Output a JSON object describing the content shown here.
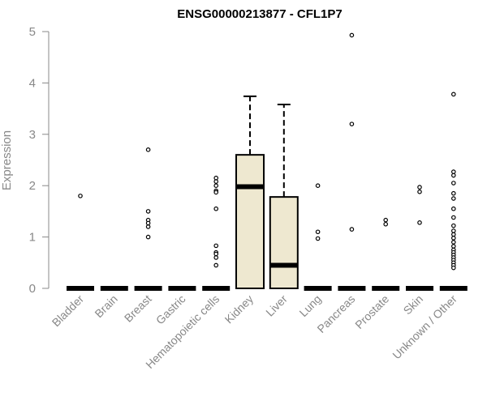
{
  "chart_data": {
    "type": "box",
    "title": "ENSG00000213877 - CFL1P7",
    "ylabel": "Expression",
    "xlabel": "",
    "ylim": [
      0,
      5
    ],
    "yticks": [
      "0",
      "1",
      "2",
      "3",
      "4",
      "5"
    ],
    "grid": false,
    "categories": [
      "Bladder",
      "Brain",
      "Breast",
      "Gastric",
      "Hematopoietic cells",
      "Kidney",
      "Liver",
      "Lung",
      "Pancreas",
      "Prostate",
      "Skin",
      "Unknown / Other"
    ],
    "box_color": "#eee8d0",
    "boxes": [
      {
        "q1": 0,
        "median": 0,
        "q3": 0,
        "whisker_low": 0,
        "whisker_high": 0,
        "outliers": [
          1.8
        ]
      },
      {
        "q1": 0,
        "median": 0,
        "q3": 0,
        "whisker_low": 0,
        "whisker_high": 0,
        "outliers": []
      },
      {
        "q1": 0,
        "median": 0,
        "q3": 0,
        "whisker_low": 0,
        "whisker_high": 0,
        "outliers": [
          2.7,
          1.5,
          1.33,
          1.27,
          1.2,
          1.0
        ]
      },
      {
        "q1": 0,
        "median": 0,
        "q3": 0,
        "whisker_low": 0,
        "whisker_high": 0,
        "outliers": []
      },
      {
        "q1": 0,
        "median": 0,
        "q3": 0,
        "whisker_low": 0,
        "whisker_high": 0,
        "outliers": [
          2.15,
          2.08,
          2.0,
          1.9,
          1.87,
          1.55,
          0.83,
          0.7,
          0.67,
          0.6,
          0.45
        ]
      },
      {
        "q1": 0,
        "median": 1.98,
        "q3": 2.6,
        "whisker_low": 0,
        "whisker_high": 3.74,
        "outliers": []
      },
      {
        "q1": 0,
        "median": 0.45,
        "q3": 1.78,
        "whisker_low": 0,
        "whisker_high": 3.58,
        "outliers": []
      },
      {
        "q1": 0,
        "median": 0,
        "q3": 0,
        "whisker_low": 0,
        "whisker_high": 0,
        "outliers": [
          2.0,
          1.1,
          0.97
        ]
      },
      {
        "q1": 0,
        "median": 0,
        "q3": 0,
        "whisker_low": 0,
        "whisker_high": 0,
        "outliers": [
          4.93,
          3.2,
          1.15
        ]
      },
      {
        "q1": 0,
        "median": 0,
        "q3": 0,
        "whisker_low": 0,
        "whisker_high": 0,
        "outliers": [
          1.33,
          1.25
        ]
      },
      {
        "q1": 0,
        "median": 0,
        "q3": 0,
        "whisker_low": 0,
        "whisker_high": 0,
        "outliers": [
          1.97,
          1.88,
          1.28
        ]
      },
      {
        "q1": 0,
        "median": 0,
        "q3": 0,
        "whisker_low": 0,
        "whisker_high": 0,
        "outliers": [
          3.78,
          2.27,
          2.2,
          2.05,
          1.85,
          1.75,
          1.55,
          1.38,
          1.22,
          1.12,
          1.05,
          0.98,
          0.9,
          0.82,
          0.75,
          0.7,
          0.65,
          0.6,
          0.55,
          0.5,
          0.45,
          0.4
        ]
      }
    ]
  }
}
